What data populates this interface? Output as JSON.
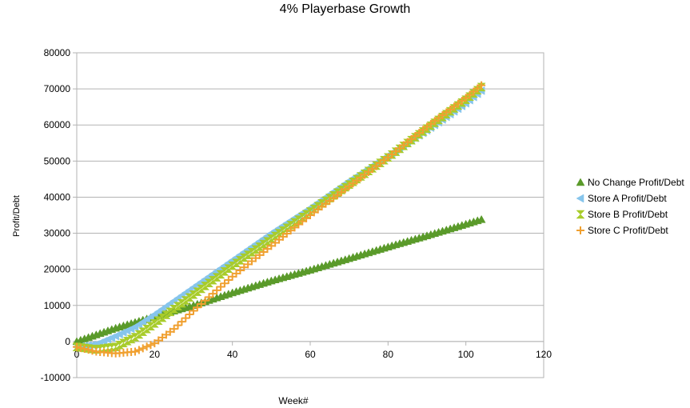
{
  "chart_data": {
    "type": "scatter",
    "title": "4% Playerbase Growth",
    "xlabel": "Week#",
    "ylabel": "Profit/Debt",
    "xlim": [
      0,
      120
    ],
    "ylim": [
      -10000,
      80000
    ],
    "x_ticks": [
      "0",
      "20",
      "40",
      "60",
      "80",
      "100",
      "120"
    ],
    "y_ticks": [
      "-10000",
      "0",
      "10000",
      "20000",
      "30000",
      "40000",
      "50000",
      "60000",
      "70000",
      "80000"
    ],
    "grid": "horizontal",
    "legend_position": "right",
    "series": [
      {
        "name": "No Change Profit/Debt",
        "color": "#5a9a2a",
        "marker": "triangle-up",
        "x": [
          0,
          10,
          20,
          30,
          40,
          50,
          60,
          70,
          80,
          90,
          100,
          104
        ],
        "y": [
          0,
          3700,
          6900,
          10000,
          13500,
          16800,
          19800,
          23000,
          26200,
          29300,
          32500,
          33800
        ]
      },
      {
        "name": "Store A Profit/Debt",
        "color": "#86c5ec",
        "marker": "triangle-left",
        "x": [
          0,
          5,
          10,
          15,
          20,
          30,
          40,
          50,
          60,
          70,
          80,
          90,
          100,
          104
        ],
        "y": [
          -1500,
          -800,
          1500,
          4000,
          7500,
          15000,
          22500,
          30000,
          37000,
          44500,
          51500,
          58500,
          66000,
          69500
        ]
      },
      {
        "name": "Store B Profit/Debt",
        "color": "#a8cc2a",
        "marker": "hourglass",
        "x": [
          0,
          5,
          10,
          15,
          20,
          30,
          40,
          50,
          60,
          70,
          80,
          90,
          100,
          104
        ],
        "y": [
          -1500,
          -2200,
          -1500,
          1200,
          5000,
          13000,
          21000,
          28500,
          36000,
          43500,
          51000,
          59000,
          67000,
          70500
        ]
      },
      {
        "name": "Store C Profit/Debt",
        "color": "#f0a030",
        "marker": "plus",
        "x": [
          0,
          5,
          10,
          15,
          20,
          25,
          30,
          40,
          50,
          60,
          70,
          80,
          90,
          100,
          104
        ],
        "y": [
          -1500,
          -2800,
          -3300,
          -2800,
          -500,
          3500,
          8500,
          18000,
          26500,
          35000,
          43000,
          51000,
          59500,
          67500,
          71000
        ]
      }
    ]
  }
}
